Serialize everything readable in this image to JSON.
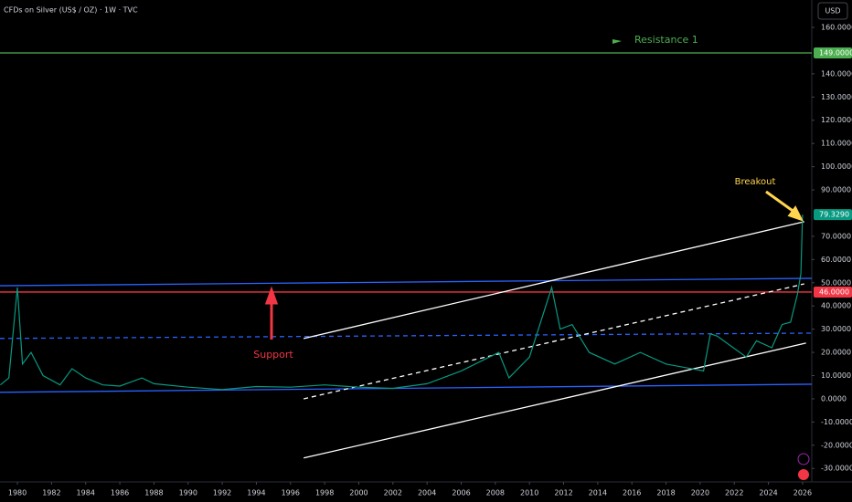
{
  "chart_data": {
    "type": "line",
    "title": "CFDs on Silver (US$ / OZ) · 1W · TVC",
    "currency": "USD",
    "series": [
      {
        "name": "Silver",
        "color": "#089981",
        "x": [
          1979.0,
          1979.5,
          1980.0,
          1980.3,
          1980.8,
          1981.5,
          1982.5,
          1983.2,
          1984.0,
          1985.0,
          1986.0,
          1987.3,
          1988.0,
          1990.0,
          1992.0,
          1994.0,
          1996.0,
          1998.0,
          2000.0,
          2002.0,
          2004.0,
          2006.0,
          2008.2,
          2008.8,
          2010.0,
          2011.3,
          2011.8,
          2012.5,
          2013.5,
          2015.0,
          2016.5,
          2018.0,
          2020.2,
          2020.6,
          2021.0,
          2022.7,
          2023.3,
          2024.2,
          2024.8,
          2025.3,
          2025.7,
          2025.9,
          2026.0
        ],
        "values": [
          6,
          9,
          48,
          15,
          20,
          10,
          6,
          13,
          9,
          6,
          5.5,
          9,
          6.5,
          5,
          4,
          5.3,
          5,
          6,
          5,
          4.5,
          6.5,
          12,
          20,
          9,
          18,
          48,
          30,
          32,
          20,
          15,
          20,
          15,
          12,
          28,
          27,
          18,
          25,
          22,
          32,
          33,
          45,
          54,
          79.329
        ]
      }
    ],
    "xlim": [
      1978.98,
      2026.54
    ],
    "xticks": [
      1980,
      1982,
      1984,
      1986,
      1988,
      1990,
      1992,
      1994,
      1996,
      1998,
      2000,
      2002,
      2004,
      2006,
      2008,
      2010,
      2012,
      2014,
      2016,
      2018,
      2020,
      2022,
      2024,
      2026
    ],
    "ylim": [
      -35.8,
      171.8
    ],
    "yticks": [
      {
        "value": -30,
        "label": "-30.0000"
      },
      {
        "value": -20,
        "label": "-20.0000"
      },
      {
        "value": -10,
        "label": "-10.0000"
      },
      {
        "value": 0,
        "label": "0.0000"
      },
      {
        "value": 10,
        "label": "10.0000"
      },
      {
        "value": 20,
        "label": "20.0000"
      },
      {
        "value": 30,
        "label": "30.0000"
      },
      {
        "value": 40,
        "label": "40.0000"
      },
      {
        "value": 50,
        "label": "50.0000"
      },
      {
        "value": 60,
        "label": "60.0000"
      },
      {
        "value": 70,
        "label": "70.0000"
      },
      {
        "value": 90,
        "label": "90.0000"
      },
      {
        "value": 100,
        "label": "100.0000"
      },
      {
        "value": 110,
        "label": "110.0000"
      },
      {
        "value": 120,
        "label": "120.0000"
      },
      {
        "value": 130,
        "label": "130.0000"
      },
      {
        "value": 140,
        "label": "140.0000"
      },
      {
        "value": 160,
        "label": "160.0000"
      }
    ],
    "price_markers": [
      {
        "value": 149,
        "label": "149.0000",
        "color": "#4caf50"
      },
      {
        "value": 79.329,
        "label": "79.3290",
        "color": "#089981"
      },
      {
        "value": 46,
        "label": "46.0000",
        "color": "#f23645"
      }
    ],
    "drawings": [
      {
        "x1": 1978.98,
        "y1": 149,
        "x2": 2026.54,
        "y2": 149,
        "color": "#4caf50",
        "dash": false
      },
      {
        "x1": 1978.98,
        "y1": 48.7,
        "x2": 2026.54,
        "y2": 51.9,
        "color": "#2962ff",
        "dash": false
      },
      {
        "x1": 1978.98,
        "y1": 46,
        "x2": 2026.54,
        "y2": 46,
        "color": "#f23645",
        "dash": false
      },
      {
        "x1": 1978.98,
        "y1": 26,
        "x2": 2026.54,
        "y2": 28.3,
        "color": "#2962ff",
        "dash": true
      },
      {
        "x1": 1978.98,
        "y1": 2.8,
        "x2": 2026.54,
        "y2": 6.3,
        "color": "#2962ff",
        "dash": false
      },
      {
        "x1": 1996.77,
        "y1": 26,
        "x2": 2026.1,
        "y2": 76.3,
        "color": "#ffffff",
        "dash": false
      },
      {
        "x1": 1996.77,
        "y1": 0,
        "x2": 2026.1,
        "y2": 49.5,
        "color": "#ffffff",
        "dash": true
      },
      {
        "x1": 1996.77,
        "y1": -25.5,
        "x2": 2026.2,
        "y2": 24,
        "color": "#ffffff",
        "dash": false
      }
    ],
    "annotations": {
      "resistance": "Resistance 1",
      "support": "Support",
      "breakout": "Breakout"
    }
  }
}
